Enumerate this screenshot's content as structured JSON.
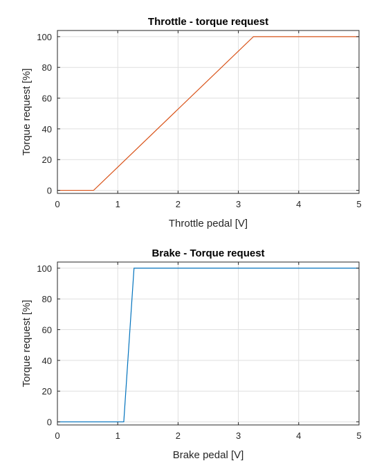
{
  "chart_data": [
    {
      "type": "line",
      "title": "Throttle - torque request",
      "xlabel": "Throttle pedal [V]",
      "ylabel": "Torque request [%]",
      "xlim": [
        0,
        5
      ],
      "ylim": [
        -2,
        104
      ],
      "xticks": [
        0,
        1,
        2,
        3,
        4,
        5
      ],
      "yticks": [
        0,
        20,
        40,
        60,
        80,
        100
      ],
      "grid": true,
      "series": [
        {
          "color": "#d95319",
          "x": [
            0,
            0.6,
            3.25,
            5
          ],
          "y": [
            0,
            0,
            100,
            100
          ]
        }
      ]
    },
    {
      "type": "line",
      "title": "Brake - Torque request",
      "xlabel": "Brake pedal [V]",
      "ylabel": "Torque request [%]",
      "xlim": [
        0,
        5
      ],
      "ylim": [
        -2,
        104
      ],
      "xticks": [
        0,
        1,
        2,
        3,
        4,
        5
      ],
      "yticks": [
        0,
        20,
        40,
        60,
        80,
        100
      ],
      "grid": true,
      "series": [
        {
          "color": "#0072bd",
          "x": [
            0,
            1.1,
            1.27,
            5
          ],
          "y": [
            0,
            0,
            100,
            100
          ]
        }
      ]
    }
  ]
}
